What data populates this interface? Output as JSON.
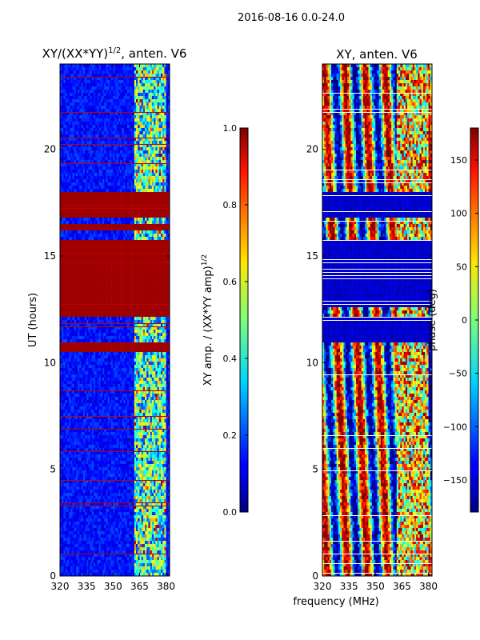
{
  "chart_data": [
    {
      "type": "heatmap",
      "suptitle": "2016-08-16 0.0-24.0",
      "title_main": "XY/(XX*YY)",
      "title_sup": "1/2",
      "title_tail": ", anten. V6",
      "xlabel": "frequency (MHz)",
      "ylabel": "UT (hours)",
      "xlim": [
        320,
        382
      ],
      "ylim": [
        0,
        24
      ],
      "xticks": [
        320,
        335,
        350,
        365,
        380
      ],
      "yticks": [
        0,
        5,
        10,
        15,
        20
      ],
      "colorbar": {
        "label_main": "XY amp. / (XX*YY amp)",
        "label_sup": "1/2",
        "range": [
          0.0,
          1.0
        ],
        "ticks": [
          "0.0",
          "0.2",
          "0.4",
          "0.6",
          "0.8",
          "1.0"
        ]
      },
      "saturated_bands_hours": [
        [
          10.5,
          11.0
        ],
        [
          12.2,
          12.6
        ],
        [
          12.6,
          15.8
        ],
        [
          16.2,
          16.5
        ],
        [
          16.8,
          18.0
        ]
      ],
      "high_signal_band_mhz": [
        362,
        380
      ]
    },
    {
      "type": "heatmap",
      "title": "XY, anten. V6",
      "xlabel": "frequency (MHz)",
      "ylabel": "",
      "xlim": [
        320,
        382
      ],
      "ylim": [
        0,
        24
      ],
      "xticks": [
        320,
        335,
        350,
        365,
        380
      ],
      "yticks": [
        0,
        5,
        10,
        15,
        20
      ],
      "colorbar": {
        "label": "phase (deg)",
        "range": [
          -180,
          180
        ],
        "ticks": [
          "−150",
          "−100",
          "−50",
          "0",
          "50",
          "100",
          "150"
        ]
      },
      "uniform_bands_hours": [
        [
          11.0,
          12.2
        ],
        [
          12.6,
          15.8
        ],
        [
          16.8,
          18.0
        ]
      ]
    }
  ]
}
